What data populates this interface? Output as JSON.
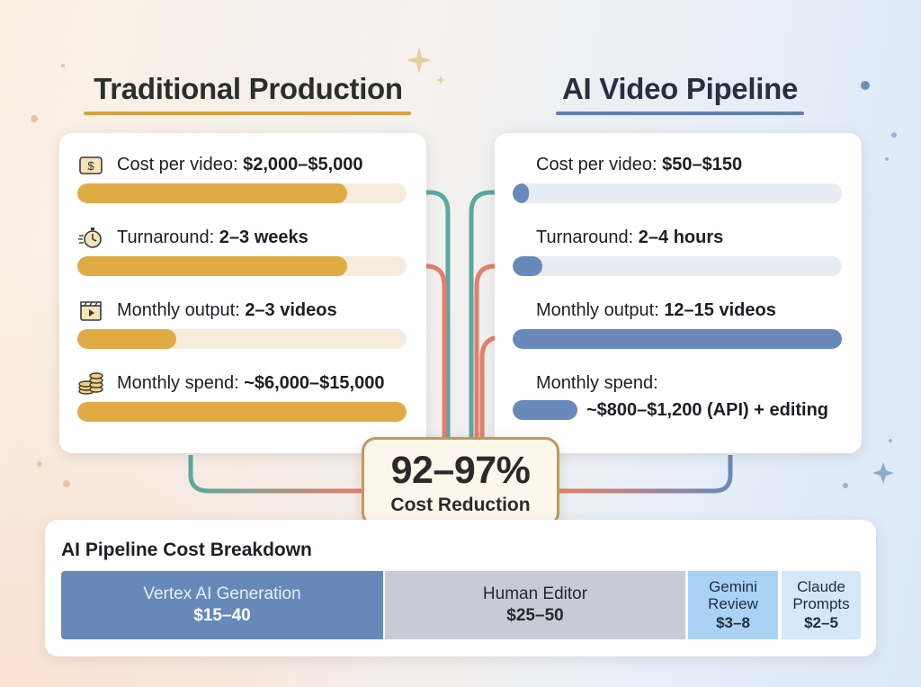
{
  "traditional": {
    "title": "Traditional Production",
    "metrics": [
      {
        "icon": "dollar-bill-icon",
        "label": "Cost per video:",
        "value": "$2,000–$5,000",
        "fill": 0.82
      },
      {
        "icon": "stopwatch-icon",
        "label": "Turnaround:",
        "value": "2–3 weeks",
        "fill": 0.82
      },
      {
        "icon": "video-clapper-icon",
        "label": "Monthly output:",
        "value": "2–3 videos",
        "fill": 0.3
      },
      {
        "icon": "coin-stack-icon",
        "label": "Monthly spend:",
        "value": "~$6,000–$15,000",
        "fill": 1.0
      }
    ]
  },
  "ai": {
    "title": "AI Video Pipeline",
    "metrics": [
      {
        "label": "Cost per video:",
        "value": "$50–$150",
        "fill": 0.05
      },
      {
        "label": "Turnaround:",
        "value": "2–4 hours",
        "fill": 0.09
      },
      {
        "label": "Monthly output:",
        "value": "12–15 videos",
        "fill": 1.0
      },
      {
        "label": "Monthly spend:",
        "value": "~$800–$1,200 (API) + editing",
        "fill": 0.2
      }
    ]
  },
  "summary": {
    "value": "92–97%",
    "label": "Cost Reduction"
  },
  "breakdown": {
    "title": "AI Pipeline Cost Breakdown",
    "segments": [
      {
        "label": "Vertex AI Generation",
        "value": "$15–40"
      },
      {
        "label": "Human Editor",
        "value": "$25–50"
      },
      {
        "label_line1": "Gemini",
        "label_line2": "Review",
        "value": "$3–8"
      },
      {
        "label_line1": "Claude",
        "label_line2": "Prompts",
        "value": "$2–5"
      }
    ]
  },
  "colors": {
    "traditional_accent": "#e0aa45",
    "ai_accent": "#6889ba",
    "connector_teal": "#5aa8a0",
    "connector_coral": "#e57e68",
    "badge_border": "#c09a56"
  }
}
